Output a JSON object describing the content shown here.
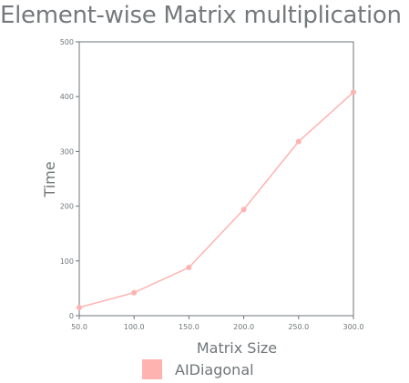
{
  "chart_data": {
    "type": "line",
    "title": "Element-wise Matrix multiplication",
    "xlabel": "Matrix Size",
    "ylabel": "Time",
    "x": [
      50.0,
      100.0,
      150.0,
      200.0,
      250.0,
      300.0
    ],
    "x_tick_labels": [
      "50.0",
      "100.0",
      "150.0",
      "200.0",
      "250.0",
      "300.0"
    ],
    "y_ticks": [
      0,
      100,
      200,
      300,
      400,
      500
    ],
    "y_tick_labels": [
      "0",
      "100",
      "200",
      "300",
      "400",
      "500"
    ],
    "xlim": [
      50,
      300
    ],
    "ylim": [
      0,
      500
    ],
    "series": [
      {
        "name": "AIDiagonal",
        "color": "#ffb3b0",
        "values": [
          15,
          42,
          88,
          194,
          318,
          408
        ]
      }
    ],
    "grid": false,
    "legend_position": "bottom"
  }
}
